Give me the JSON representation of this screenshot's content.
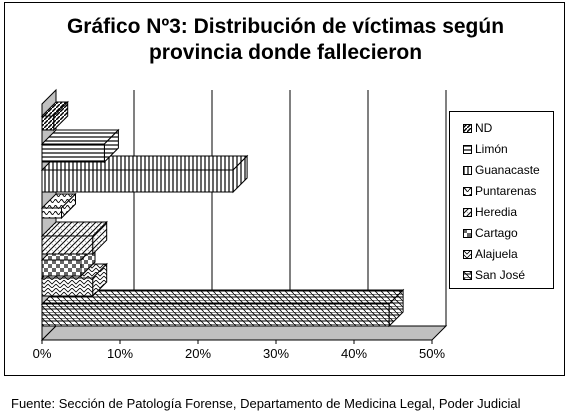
{
  "chart_data": {
    "type": "bar",
    "orientation": "horizontal",
    "style": "3d",
    "title": [
      "Gráfico Nº3: Distribución de víctimas según",
      "provincia donde fallecieron"
    ],
    "categories": [
      "San José",
      "Alajuela",
      "Cartago",
      "Heredia",
      "Puntarenas",
      "Guanacaste",
      "Limón",
      "ND"
    ],
    "values": [
      44.5,
      6.5,
      5.0,
      6.5,
      2.5,
      24.5,
      8.0,
      1.5
    ],
    "xlim": [
      0,
      50
    ],
    "x_ticks": [
      "0%",
      "10%",
      "20%",
      "30%",
      "40%",
      "50%"
    ],
    "grid": true,
    "legend_position": "right",
    "legend": [
      "ND",
      "Limón",
      "Guanacaste",
      "Puntarenas",
      "Heredia",
      "Cartago",
      "Alajuela",
      "San José"
    ]
  },
  "source": "Fuente: Sección de Patología Forense, Departamento de Medicina Legal, Poder Judicial"
}
